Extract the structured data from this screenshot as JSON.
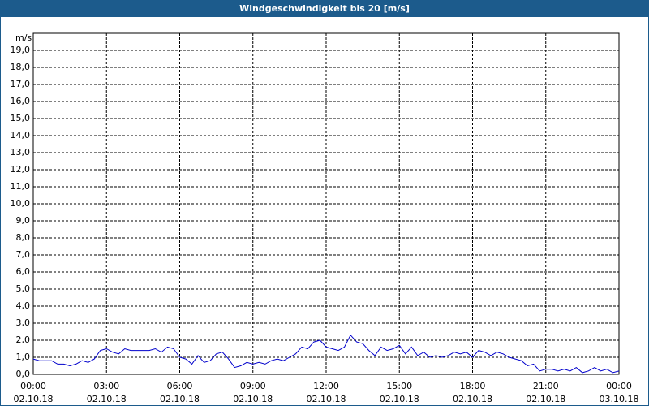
{
  "chart_data": {
    "type": "line",
    "title": "Windgeschwindigkeit bis 20 [m/s]",
    "y_label": "m/s",
    "color": "#0000cc",
    "grid": true,
    "x": [
      0,
      0.25,
      0.5,
      0.75,
      1,
      1.25,
      1.5,
      1.75,
      2,
      2.25,
      2.5,
      2.75,
      3,
      3.25,
      3.5,
      3.75,
      4,
      4.25,
      4.5,
      4.75,
      5,
      5.25,
      5.5,
      5.75,
      6,
      6.25,
      6.5,
      6.75,
      7,
      7.25,
      7.5,
      7.75,
      8,
      8.25,
      8.5,
      8.75,
      9,
      9.25,
      9.5,
      9.75,
      10,
      10.25,
      10.5,
      10.75,
      11,
      11.25,
      11.5,
      11.75,
      12,
      12.25,
      12.5,
      12.75,
      13,
      13.25,
      13.5,
      13.75,
      14,
      14.25,
      14.5,
      14.75,
      15,
      15.25,
      15.5,
      15.75,
      16,
      16.25,
      16.5,
      16.75,
      17,
      17.25,
      17.5,
      17.75,
      18,
      18.25,
      18.5,
      18.75,
      19,
      19.25,
      19.5,
      19.75,
      20,
      20.25,
      20.5,
      20.75,
      21,
      21.25,
      21.5,
      21.75,
      22,
      22.25,
      22.5,
      22.75,
      23,
      23.25,
      23.5,
      23.75,
      24
    ],
    "values": [
      0.9,
      0.8,
      0.8,
      0.8,
      0.6,
      0.6,
      0.5,
      0.6,
      0.8,
      0.7,
      0.9,
      1.4,
      1.5,
      1.3,
      1.2,
      1.5,
      1.4,
      1.4,
      1.4,
      1.4,
      1.5,
      1.3,
      1.6,
      1.5,
      1.0,
      0.9,
      0.6,
      1.1,
      0.7,
      0.8,
      1.2,
      1.3,
      0.9,
      0.4,
      0.5,
      0.7,
      0.6,
      0.7,
      0.6,
      0.8,
      0.9,
      0.8,
      1.0,
      1.2,
      1.6,
      1.5,
      1.9,
      2.0,
      1.6,
      1.5,
      1.4,
      1.6,
      2.3,
      1.9,
      1.8,
      1.4,
      1.1,
      1.6,
      1.4,
      1.5,
      1.7,
      1.2,
      1.6,
      1.1,
      1.3,
      1.0,
      1.1,
      1.0,
      1.1,
      1.3,
      1.2,
      1.3,
      1.0,
      1.4,
      1.3,
      1.1,
      1.3,
      1.2,
      1.0,
      0.9,
      0.8,
      0.5,
      0.6,
      0.2,
      0.3,
      0.3,
      0.2,
      0.3,
      0.2,
      0.4,
      0.1,
      0.2,
      0.4,
      0.2,
      0.3,
      0.1,
      0.2
    ],
    "xlim": [
      0,
      24
    ],
    "xticks": [
      {
        "value": 0,
        "label": "00:00\n02.10.18"
      },
      {
        "value": 3,
        "label": "03:00\n02.10.18"
      },
      {
        "value": 6,
        "label": "06:00\n02.10.18"
      },
      {
        "value": 9,
        "label": "09:00\n02.10.18"
      },
      {
        "value": 12,
        "label": "12:00\n02.10.18"
      },
      {
        "value": 15,
        "label": "15:00\n02.10.18"
      },
      {
        "value": 18,
        "label": "18:00\n02.10.18"
      },
      {
        "value": 21,
        "label": "21:00\n02.10.18"
      },
      {
        "value": 24,
        "label": "00:00\n03.10.18"
      }
    ],
    "ylim": [
      0,
      20
    ],
    "yticks": [
      {
        "value": 0,
        "label": "0,0"
      },
      {
        "value": 1,
        "label": "1,0"
      },
      {
        "value": 2,
        "label": "2,0"
      },
      {
        "value": 3,
        "label": "3,0"
      },
      {
        "value": 4,
        "label": "4,0"
      },
      {
        "value": 5,
        "label": "5,0"
      },
      {
        "value": 6,
        "label": "6,0"
      },
      {
        "value": 7,
        "label": "7,0"
      },
      {
        "value": 8,
        "label": "8,0"
      },
      {
        "value": 9,
        "label": "9,0"
      },
      {
        "value": 10,
        "label": "10,0"
      },
      {
        "value": 11,
        "label": "11,0"
      },
      {
        "value": 12,
        "label": "12,0"
      },
      {
        "value": 13,
        "label": "13,0"
      },
      {
        "value": 14,
        "label": "14,0"
      },
      {
        "value": 15,
        "label": "15,0"
      },
      {
        "value": 16,
        "label": "16,0"
      },
      {
        "value": 17,
        "label": "17,0"
      },
      {
        "value": 18,
        "label": "18,0"
      },
      {
        "value": 19,
        "label": "19,0"
      }
    ]
  }
}
